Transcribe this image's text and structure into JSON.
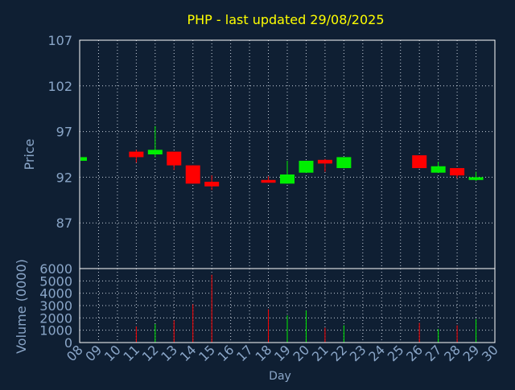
{
  "colors": {
    "background": "#0f1f33",
    "title": "#ffff00",
    "axis_text": "#8aa6c8",
    "frame": "#ffffff",
    "grid": "#c8d0dc",
    "up": "#00ee00",
    "down": "#ff0000"
  },
  "chart_data": [
    {
      "type": "candlestick",
      "title": "PHP - last updated 29/08/2025",
      "ylabel": "Price",
      "ylim": [
        82,
        107
      ],
      "y_ticks": [
        "87",
        "92",
        "97",
        "102",
        "107"
      ],
      "y_tick_values": [
        87,
        92,
        97,
        102,
        107
      ],
      "grid": true,
      "candles": [
        {
          "day": 8,
          "open": 93.8,
          "close": 94.2,
          "high": 94.2,
          "low": 93.8
        },
        {
          "day": 11,
          "open": 94.8,
          "close": 94.2,
          "high": 95.0,
          "low": 93.6
        },
        {
          "day": 12,
          "open": 94.5,
          "close": 95.0,
          "high": 97.6,
          "low": 94.2
        },
        {
          "day": 13,
          "open": 94.8,
          "close": 93.3,
          "high": 94.8,
          "low": 92.8
        },
        {
          "day": 14,
          "open": 93.3,
          "close": 91.3,
          "high": 93.3,
          "low": 91.3
        },
        {
          "day": 15,
          "open": 91.5,
          "close": 91.0,
          "high": 92.2,
          "low": 90.6
        },
        {
          "day": 18,
          "open": 91.7,
          "close": 91.4,
          "high": 92.1,
          "low": 91.4
        },
        {
          "day": 19,
          "open": 91.3,
          "close": 92.3,
          "high": 93.8,
          "low": 91.3
        },
        {
          "day": 20,
          "open": 92.5,
          "close": 93.8,
          "high": 93.8,
          "low": 92.5
        },
        {
          "day": 21,
          "open": 93.9,
          "close": 93.5,
          "high": 94.0,
          "low": 92.6
        },
        {
          "day": 22,
          "open": 93.0,
          "close": 94.2,
          "high": 94.2,
          "low": 93.0
        },
        {
          "day": 26,
          "open": 94.4,
          "close": 93.0,
          "high": 94.4,
          "low": 93.0
        },
        {
          "day": 27,
          "open": 92.5,
          "close": 93.2,
          "high": 93.7,
          "low": 92.5
        },
        {
          "day": 28,
          "open": 93.0,
          "close": 92.2,
          "high": 93.0,
          "low": 91.9
        },
        {
          "day": 29,
          "open": 91.7,
          "close": 92.0,
          "high": 92.6,
          "low": 91.6
        }
      ]
    },
    {
      "type": "bar",
      "ylabel": "Volume (0000)",
      "xlabel": "Day",
      "ylim": [
        0,
        6000
      ],
      "y_ticks": [
        "0",
        "1000",
        "2000",
        "3000",
        "4000",
        "5000",
        "6000"
      ],
      "y_tick_values": [
        0,
        1000,
        2000,
        3000,
        4000,
        5000,
        6000
      ],
      "x_ticks": [
        "08",
        "09",
        "10",
        "11",
        "12",
        "13",
        "14",
        "15",
        "16",
        "17",
        "18",
        "19",
        "20",
        "21",
        "22",
        "23",
        "24",
        "25",
        "26",
        "27",
        "28",
        "29",
        "30"
      ],
      "x_tick_values": [
        8,
        9,
        10,
        11,
        12,
        13,
        14,
        15,
        16,
        17,
        18,
        19,
        20,
        21,
        22,
        23,
        24,
        25,
        26,
        27,
        28,
        29,
        30
      ],
      "xlim": [
        8,
        30
      ],
      "bars": [
        {
          "day": 8,
          "value": 0,
          "color": "up"
        },
        {
          "day": 11,
          "value": 1300,
          "color": "down"
        },
        {
          "day": 12,
          "value": 1500,
          "color": "up"
        },
        {
          "day": 13,
          "value": 1800,
          "color": "down"
        },
        {
          "day": 14,
          "value": 3100,
          "color": "down"
        },
        {
          "day": 15,
          "value": 5500,
          "color": "down"
        },
        {
          "day": 18,
          "value": 2700,
          "color": "down"
        },
        {
          "day": 19,
          "value": 2200,
          "color": "up"
        },
        {
          "day": 20,
          "value": 2600,
          "color": "up"
        },
        {
          "day": 21,
          "value": 1200,
          "color": "down"
        },
        {
          "day": 22,
          "value": 1400,
          "color": "up"
        },
        {
          "day": 26,
          "value": 1600,
          "color": "down"
        },
        {
          "day": 27,
          "value": 1100,
          "color": "up"
        },
        {
          "day": 28,
          "value": 1400,
          "color": "down"
        },
        {
          "day": 29,
          "value": 1900,
          "color": "up"
        }
      ]
    }
  ]
}
